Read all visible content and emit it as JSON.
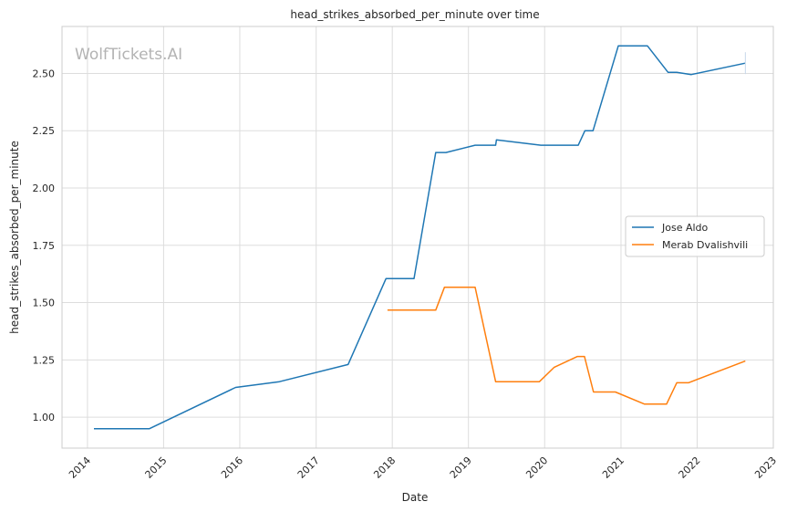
{
  "chart_data": {
    "type": "line",
    "title": "head_strikes_absorbed_per_minute over time",
    "xlabel": "Date",
    "ylabel": "head_strikes_absorbed_per_minute",
    "watermark": "WolfTickets.AI",
    "xlim": [
      "2013-09-01",
      "2023-01-01"
    ],
    "ylim": [
      0.865,
      2.705
    ],
    "x_ticks": [
      "2014",
      "2015",
      "2016",
      "2017",
      "2018",
      "2019",
      "2020",
      "2021",
      "2022",
      "2023"
    ],
    "y_ticks": [
      "1.00",
      "1.25",
      "1.50",
      "1.75",
      "2.00",
      "2.25",
      "2.50"
    ],
    "y_tick_values": [
      1.0,
      1.25,
      1.5,
      1.75,
      2.0,
      2.25,
      2.5
    ],
    "grid": true,
    "legend_position": "center-right",
    "series": [
      {
        "name": "Jose Aldo",
        "color": "#1f77b4",
        "points": [
          [
            "2014-02-01",
            0.95
          ],
          [
            "2014-10-25",
            0.95
          ],
          [
            "2015-12-12",
            1.13
          ],
          [
            "2016-07-09",
            1.155
          ],
          [
            "2017-06-03",
            1.23
          ],
          [
            "2017-12-02",
            1.605
          ],
          [
            "2018-04-15",
            1.605
          ],
          [
            "2018-07-28",
            2.155
          ],
          [
            "2018-09-15",
            2.155
          ],
          [
            "2019-02-02",
            2.187
          ],
          [
            "2019-05-11",
            2.187
          ],
          [
            "2019-05-15",
            2.21
          ],
          [
            "2019-12-14",
            2.187
          ],
          [
            "2020-06-10",
            2.187
          ],
          [
            "2020-07-12",
            2.25
          ],
          [
            "2020-08-20",
            2.25
          ],
          [
            "2020-12-19",
            2.62
          ],
          [
            "2021-05-08",
            2.62
          ],
          [
            "2021-08-14",
            2.505
          ],
          [
            "2021-09-25",
            2.505
          ],
          [
            "2021-12-04",
            2.495
          ],
          [
            "2022-08-20",
            2.545
          ]
        ]
      },
      {
        "name": "Merab Dvalishvili",
        "color": "#ff7f0e",
        "points": [
          [
            "2017-12-09",
            1.467
          ],
          [
            "2018-07-28",
            1.467
          ],
          [
            "2018-09-08",
            1.567
          ],
          [
            "2019-02-02",
            1.567
          ],
          [
            "2019-05-11",
            1.155
          ],
          [
            "2019-12-07",
            1.155
          ],
          [
            "2020-02-15",
            1.217
          ],
          [
            "2020-06-06",
            1.265
          ],
          [
            "2020-07-10",
            1.265
          ],
          [
            "2020-08-22",
            1.11
          ],
          [
            "2020-12-05",
            1.11
          ],
          [
            "2021-04-24",
            1.057
          ],
          [
            "2021-08-07",
            1.057
          ],
          [
            "2021-09-25",
            1.15
          ],
          [
            "2021-11-20",
            1.15
          ],
          [
            "2022-08-20",
            1.245
          ]
        ]
      }
    ]
  }
}
